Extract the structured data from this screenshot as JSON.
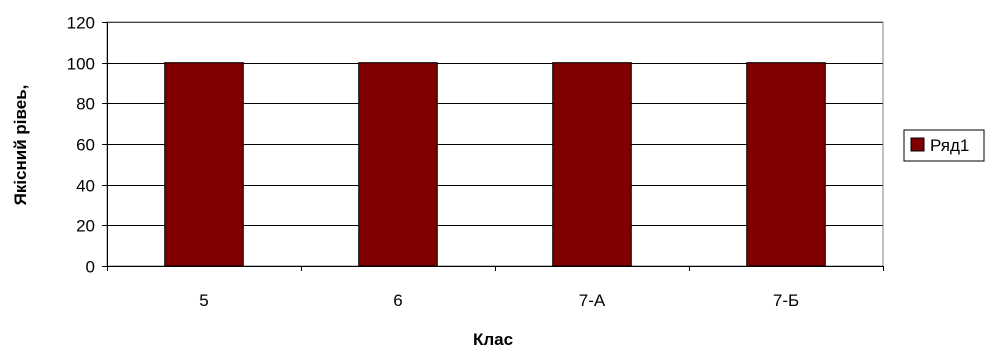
{
  "chart_data": {
    "type": "bar",
    "title": "",
    "xlabel": "Клас",
    "ylabel": "Якісний рівеь, ",
    "categories": [
      "5",
      "6",
      "7-А",
      "7-Б"
    ],
    "series": [
      {
        "name": "Ряд1",
        "values": [
          100,
          100,
          100,
          100
        ],
        "color": "#800000"
      }
    ],
    "ylim": [
      0,
      120
    ],
    "yticks": [
      0,
      20,
      40,
      60,
      80,
      100,
      120
    ],
    "grid": true,
    "legend_position": "right"
  }
}
